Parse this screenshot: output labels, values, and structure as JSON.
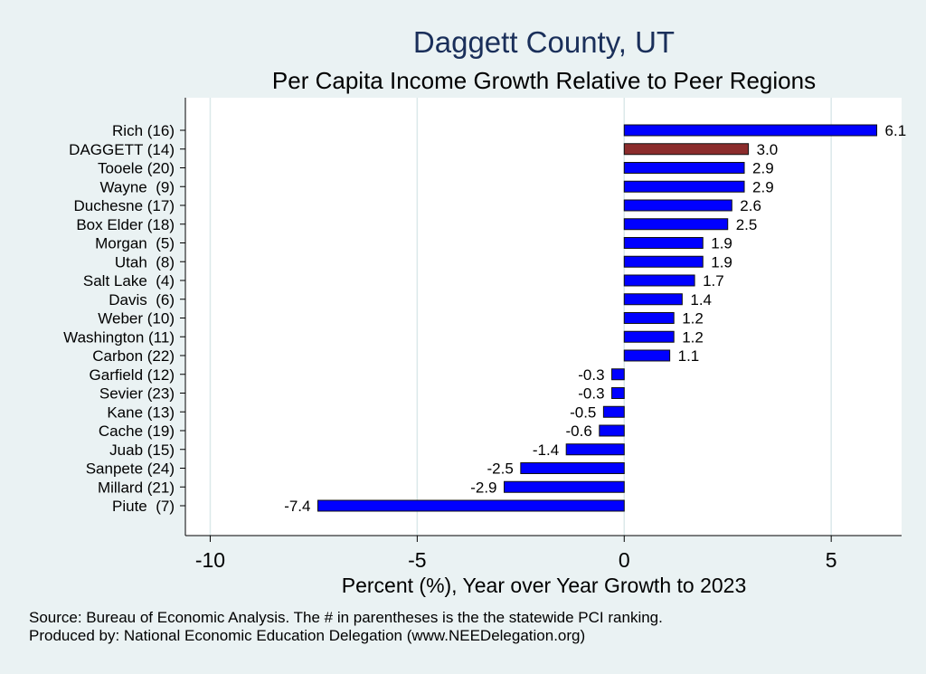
{
  "header": {
    "title": "Daggett County, UT",
    "subtitle": "Per Capita Income Growth Relative to Peer Regions"
  },
  "footer": {
    "source": "Source: Bureau of Economic Analysis. The # in parentheses is the the statewide PCI ranking.",
    "produced_by": "Produced by: National Economic Education Delegation (www.NEEDelegation.org)"
  },
  "colors": {
    "background": "#eaf2f3",
    "plot_background": "#ffffff",
    "bar": "#0000ff",
    "highlight": "#8b2c2c",
    "grid": "#dbe9ea",
    "title": "#1a2f5a"
  },
  "chart_data": {
    "type": "bar",
    "orientation": "horizontal",
    "title": "Daggett County, UT",
    "subtitle": "Per Capita Income Growth Relative to Peer Regions",
    "xlabel": "Percent (%), Year over Year Growth to 2023",
    "ylabel": "",
    "xlim": [
      -10.6,
      6.7
    ],
    "xticks": [
      -10,
      -5,
      0,
      5
    ],
    "grid": true,
    "highlight_category": "DAGGETT (14)",
    "categories": [
      "Rich (16)",
      "DAGGETT (14)",
      "Tooele (20)",
      "Wayne  (9)",
      "Duchesne (17)",
      "Box Elder (18)",
      "Morgan  (5)",
      "Utah  (8)",
      "Salt Lake  (4)",
      "Davis  (6)",
      "Weber (10)",
      "Washington (11)",
      "Carbon (22)",
      "Garfield (12)",
      "Sevier (23)",
      "Kane (13)",
      "Cache (19)",
      "Juab (15)",
      "Sanpete (24)",
      "Millard (21)",
      "Piute  (7)"
    ],
    "values": [
      6.1,
      3.0,
      2.9,
      2.9,
      2.6,
      2.5,
      1.9,
      1.9,
      1.7,
      1.4,
      1.2,
      1.2,
      1.1,
      -0.3,
      -0.3,
      -0.5,
      -0.6,
      -1.4,
      -2.5,
      -2.9,
      -7.4
    ],
    "labels": [
      "6.1",
      "3.0",
      "2.9",
      "2.9",
      "2.6",
      "2.5",
      "1.9",
      "1.9",
      "1.7",
      "1.4",
      "1.2",
      "1.2",
      "1.1",
      "-0.3",
      "-0.3",
      "-0.5",
      "-0.6",
      "-1.4",
      "-2.5",
      "-2.9",
      "-7.4"
    ]
  }
}
